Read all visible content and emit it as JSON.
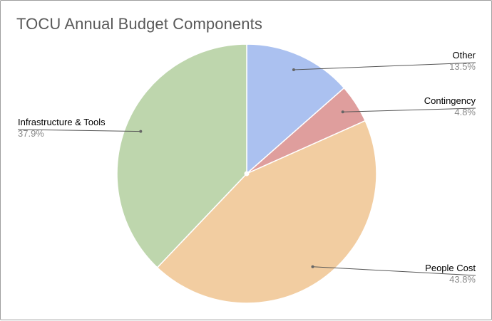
{
  "chart_data": {
    "type": "pie",
    "title": "TOCU Annual Budget Components",
    "slices": [
      {
        "label": "Other",
        "value": 13.5,
        "display": "13.5%",
        "color": "#abc1f0"
      },
      {
        "label": "Contingency",
        "value": 4.8,
        "display": "4.8%",
        "color": "#df9e9d"
      },
      {
        "label": "People Cost",
        "value": 43.8,
        "display": "43.8%",
        "color": "#f2cda1"
      },
      {
        "label": "Infrastructure & Tools",
        "value": 37.9,
        "display": "37.9%",
        "color": "#bed6ad"
      }
    ],
    "start_angle_deg": 0,
    "direction": "clockwise",
    "legend": "none"
  }
}
